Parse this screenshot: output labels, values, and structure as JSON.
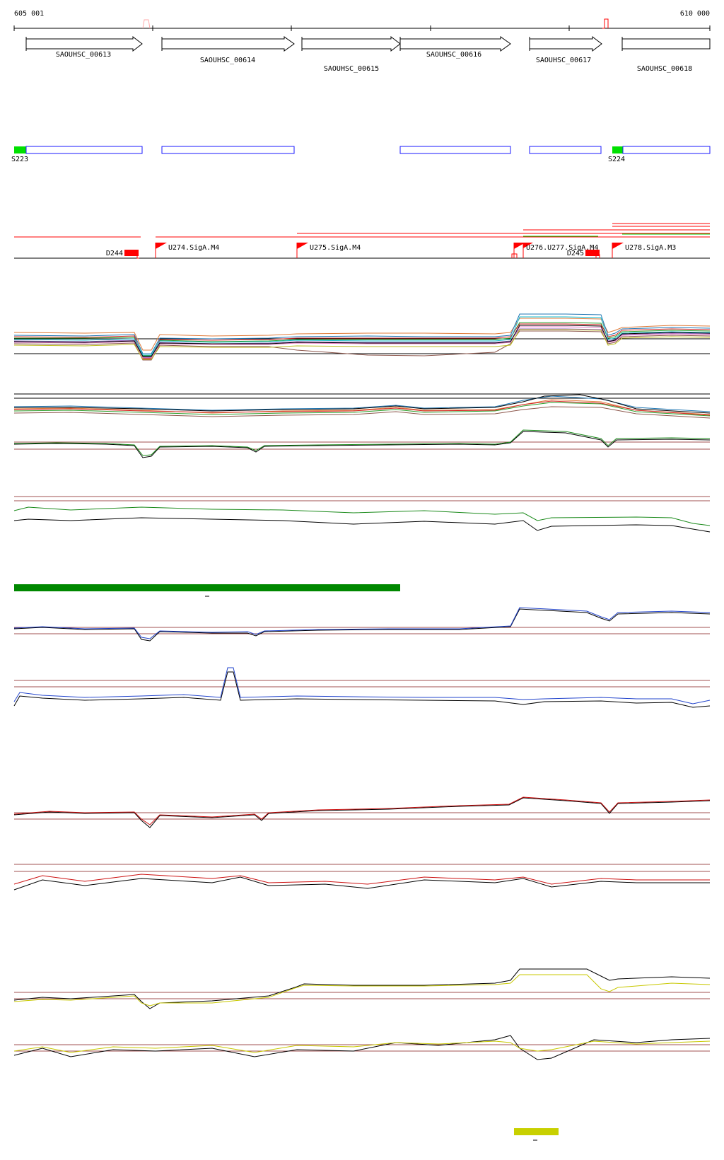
{
  "ruler": {
    "start_label": "605 001",
    "end_label": "610 000"
  },
  "genes": [
    {
      "label": "SAOUHSC_00613"
    },
    {
      "label": "SAOUHSC_00614"
    },
    {
      "label": "SAOUHSC_00615"
    },
    {
      "label": "SAOUHSC_00616"
    },
    {
      "label": "SAOUHSC_00617"
    },
    {
      "label": "SAOUHSC_00618"
    }
  ],
  "segments": [
    {
      "label": "S223"
    },
    {
      "label": "S224"
    }
  ],
  "regulatory": [
    {
      "label": "D244"
    },
    {
      "label": "U274.SigA.M4"
    },
    {
      "label": "U275.SigA.M4"
    },
    {
      "label": "U276.U277.SigA.M4"
    },
    {
      "label": "D245"
    },
    {
      "label": "U278.SigA.M3"
    }
  ],
  "colors": {
    "gene_outline": "#000000",
    "segment_box": "#1a1aff",
    "segment_start": "#00e000",
    "regulatory": "#ff0000",
    "green_bar": "#008800",
    "yellow_bar": "#c8d000",
    "series_green": "#1a8a1a",
    "series_blue": "#2244cc",
    "series_red": "#cc1111",
    "series_yellow": "#c8c800",
    "threshold": "#a05050"
  }
}
